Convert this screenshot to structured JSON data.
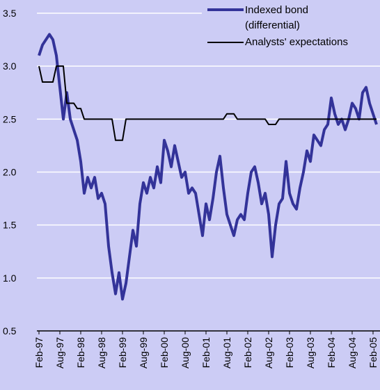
{
  "chart_data": {
    "type": "line",
    "x": [
      "1997-02",
      "1997-03",
      "1997-04",
      "1997-05",
      "1997-06",
      "1997-07",
      "1997-08",
      "1997-09",
      "1997-10",
      "1997-11",
      "1997-12",
      "1998-01",
      "1998-02",
      "1998-03",
      "1998-04",
      "1998-05",
      "1998-06",
      "1998-07",
      "1998-08",
      "1998-09",
      "1998-10",
      "1998-11",
      "1998-12",
      "1999-01",
      "1999-02",
      "1999-03",
      "1999-04",
      "1999-05",
      "1999-06",
      "1999-07",
      "1999-08",
      "1999-09",
      "1999-10",
      "1999-11",
      "1999-12",
      "2000-01",
      "2000-02",
      "2000-03",
      "2000-04",
      "2000-05",
      "2000-06",
      "2000-07",
      "2000-08",
      "2000-09",
      "2000-10",
      "2000-11",
      "2000-12",
      "2001-01",
      "2001-02",
      "2001-03",
      "2001-04",
      "2001-05",
      "2001-06",
      "2001-07",
      "2001-08",
      "2001-09",
      "2001-10",
      "2001-11",
      "2001-12",
      "2002-01",
      "2002-02",
      "2002-03",
      "2002-04",
      "2002-05",
      "2002-06",
      "2002-07",
      "2002-08",
      "2002-09",
      "2002-10",
      "2002-11",
      "2002-12",
      "2003-01",
      "2003-02",
      "2003-03",
      "2003-04",
      "2003-05",
      "2003-06",
      "2003-07",
      "2003-08",
      "2003-09",
      "2003-10",
      "2003-11",
      "2003-12",
      "2004-01",
      "2004-02",
      "2004-03",
      "2004-04",
      "2004-05",
      "2004-06",
      "2004-07",
      "2004-08",
      "2004-09",
      "2004-10",
      "2004-11",
      "2004-12",
      "2005-01",
      "2005-02",
      "2005-03"
    ],
    "series": [
      {
        "name": "Indexed bond (differential)",
        "color": "#333399",
        "values": [
          3.1,
          3.2,
          3.25,
          3.3,
          3.25,
          3.1,
          2.8,
          2.5,
          2.75,
          2.5,
          2.4,
          2.3,
          2.1,
          1.8,
          1.95,
          1.85,
          1.95,
          1.75,
          1.8,
          1.7,
          1.3,
          1.05,
          0.85,
          1.05,
          0.8,
          0.95,
          1.2,
          1.45,
          1.3,
          1.7,
          1.9,
          1.8,
          1.95,
          1.85,
          2.05,
          1.9,
          2.3,
          2.2,
          2.05,
          2.25,
          2.1,
          1.95,
          2.0,
          1.8,
          1.85,
          1.8,
          1.6,
          1.4,
          1.7,
          1.55,
          1.75,
          2.0,
          2.15,
          1.85,
          1.6,
          1.5,
          1.4,
          1.55,
          1.6,
          1.55,
          1.8,
          2.0,
          2.05,
          1.9,
          1.7,
          1.8,
          1.6,
          1.2,
          1.5,
          1.7,
          1.75,
          2.1,
          1.8,
          1.7,
          1.65,
          1.85,
          2.0,
          2.2,
          2.1,
          2.35,
          2.3,
          2.25,
          2.4,
          2.45,
          2.7,
          2.55,
          2.45,
          2.5,
          2.4,
          2.5,
          2.65,
          2.6,
          2.5,
          2.75,
          2.8,
          2.65,
          2.55,
          2.45
        ]
      },
      {
        "name": "Analysts' expectations",
        "color": "#000000",
        "values": [
          3.0,
          2.85,
          2.85,
          2.85,
          2.85,
          3.0,
          3.0,
          3.0,
          2.65,
          2.65,
          2.65,
          2.6,
          2.6,
          2.5,
          2.5,
          2.5,
          2.5,
          2.5,
          2.5,
          2.5,
          2.5,
          2.5,
          2.3,
          2.3,
          2.3,
          2.5,
          2.5,
          2.5,
          2.5,
          2.5,
          2.5,
          2.5,
          2.5,
          2.5,
          2.5,
          2.5,
          2.5,
          2.5,
          2.5,
          2.5,
          2.5,
          2.5,
          2.5,
          2.5,
          2.5,
          2.5,
          2.5,
          2.5,
          2.5,
          2.5,
          2.5,
          2.5,
          2.5,
          2.5,
          2.55,
          2.55,
          2.55,
          2.5,
          2.5,
          2.5,
          2.5,
          2.5,
          2.5,
          2.5,
          2.5,
          2.5,
          2.45,
          2.45,
          2.45,
          2.5,
          2.5,
          2.5,
          2.5,
          2.5,
          2.5,
          2.5,
          2.5,
          2.5,
          2.5,
          2.5,
          2.5,
          2.5,
          2.5,
          2.5,
          2.5,
          2.5,
          2.5,
          2.5,
          2.5,
          2.5,
          2.5,
          2.5,
          2.5,
          2.5,
          2.5,
          2.5,
          2.5,
          2.5
        ]
      }
    ],
    "ylim": [
      0.5,
      3.5
    ],
    "yticks": [
      {
        "value": 0.5,
        "label": "0.5"
      },
      {
        "value": 1,
        "label": "1.0"
      },
      {
        "value": 1.5,
        "label": "1.5"
      },
      {
        "value": 2,
        "label": "2.0"
      },
      {
        "value": 2.5,
        "label": "2.5"
      },
      {
        "value": 3,
        "label": "3.0"
      },
      {
        "value": 3.5,
        "label": "3.5"
      }
    ],
    "xticks": [
      {
        "value": "1997-02",
        "label": "Feb-97"
      },
      {
        "value": "1997-08",
        "label": "Aug-97"
      },
      {
        "value": "1998-02",
        "label": "Feb-98"
      },
      {
        "value": "1998-08",
        "label": "Aug-98"
      },
      {
        "value": "1999-02",
        "label": "Feb-99"
      },
      {
        "value": "1999-08",
        "label": "Aug-99"
      },
      {
        "value": "2000-02",
        "label": "Feb-00"
      },
      {
        "value": "2000-08",
        "label": "Aug-00"
      },
      {
        "value": "2001-02",
        "label": "Feb-01"
      },
      {
        "value": "2001-08",
        "label": "Aug-01"
      },
      {
        "value": "2002-02",
        "label": "Feb-02"
      },
      {
        "value": "2002-08",
        "label": "Aug-02"
      },
      {
        "value": "2003-02",
        "label": "Feb-03"
      },
      {
        "value": "2003-08",
        "label": "Aug-03"
      },
      {
        "value": "2004-02",
        "label": "Feb-04"
      },
      {
        "value": "2004-08",
        "label": "Aug-04"
      },
      {
        "value": "2005-02",
        "label": "Feb-05"
      }
    ],
    "grid": true
  }
}
